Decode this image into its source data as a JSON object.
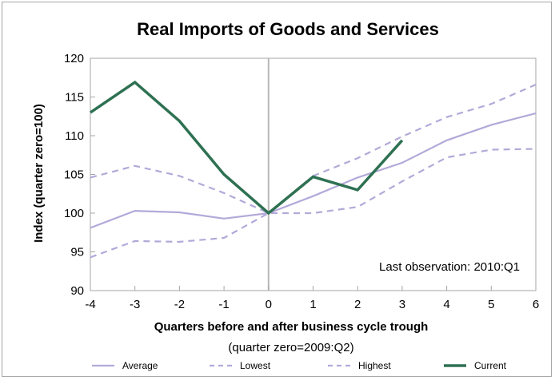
{
  "chart_data": {
    "type": "line",
    "title": "Real Imports of Goods and Services",
    "xlabel": "Quarters before and after business cycle trough",
    "xlabel_sub": "(quarter zero=2009:Q2)",
    "ylabel": "Index (quarter zero=100)",
    "annotation": "Last observation: 2010:Q1",
    "x": [
      -4,
      -3,
      -2,
      -1,
      0,
      1,
      2,
      3,
      4,
      5,
      6
    ],
    "x_tick_labels": [
      "-4",
      "-3",
      "-2",
      "-1",
      "0",
      "1",
      "2",
      "3",
      "4",
      "5",
      "6"
    ],
    "y_ticks": [
      90,
      95,
      100,
      105,
      110,
      115,
      120
    ],
    "y_tick_labels": [
      "90",
      "95",
      "100",
      "105",
      "110",
      "115",
      "120"
    ],
    "xlim": [
      -4,
      6
    ],
    "ylim": [
      90,
      120
    ],
    "grid": false,
    "legend_position": "bottom",
    "series": [
      {
        "name": "Average",
        "color": "#b3a9d9",
        "dash": "solid",
        "values": [
          98.1,
          100.3,
          100.1,
          99.3,
          100,
          102.2,
          104.6,
          106.5,
          109.4,
          111.4,
          112.9
        ]
      },
      {
        "name": "Lowest",
        "color": "#b3a9d9",
        "dash": "dashed",
        "values": [
          94.3,
          96.4,
          96.3,
          96.8,
          100,
          100,
          100.8,
          104.1,
          107.2,
          108.2,
          108.3
        ]
      },
      {
        "name": "Highest",
        "color": "#b3a9d9",
        "dash": "dashed",
        "values": [
          104.6,
          106.1,
          104.8,
          102.6,
          100,
          104.8,
          107.1,
          109.9,
          112.4,
          114.1,
          116.6
        ]
      },
      {
        "name": "Current",
        "color": "#2e7152",
        "dash": "solid",
        "values": [
          113.0,
          116.9,
          111.9,
          105.0,
          100,
          104.7,
          103.0,
          109.4,
          null,
          null,
          null
        ]
      }
    ]
  }
}
